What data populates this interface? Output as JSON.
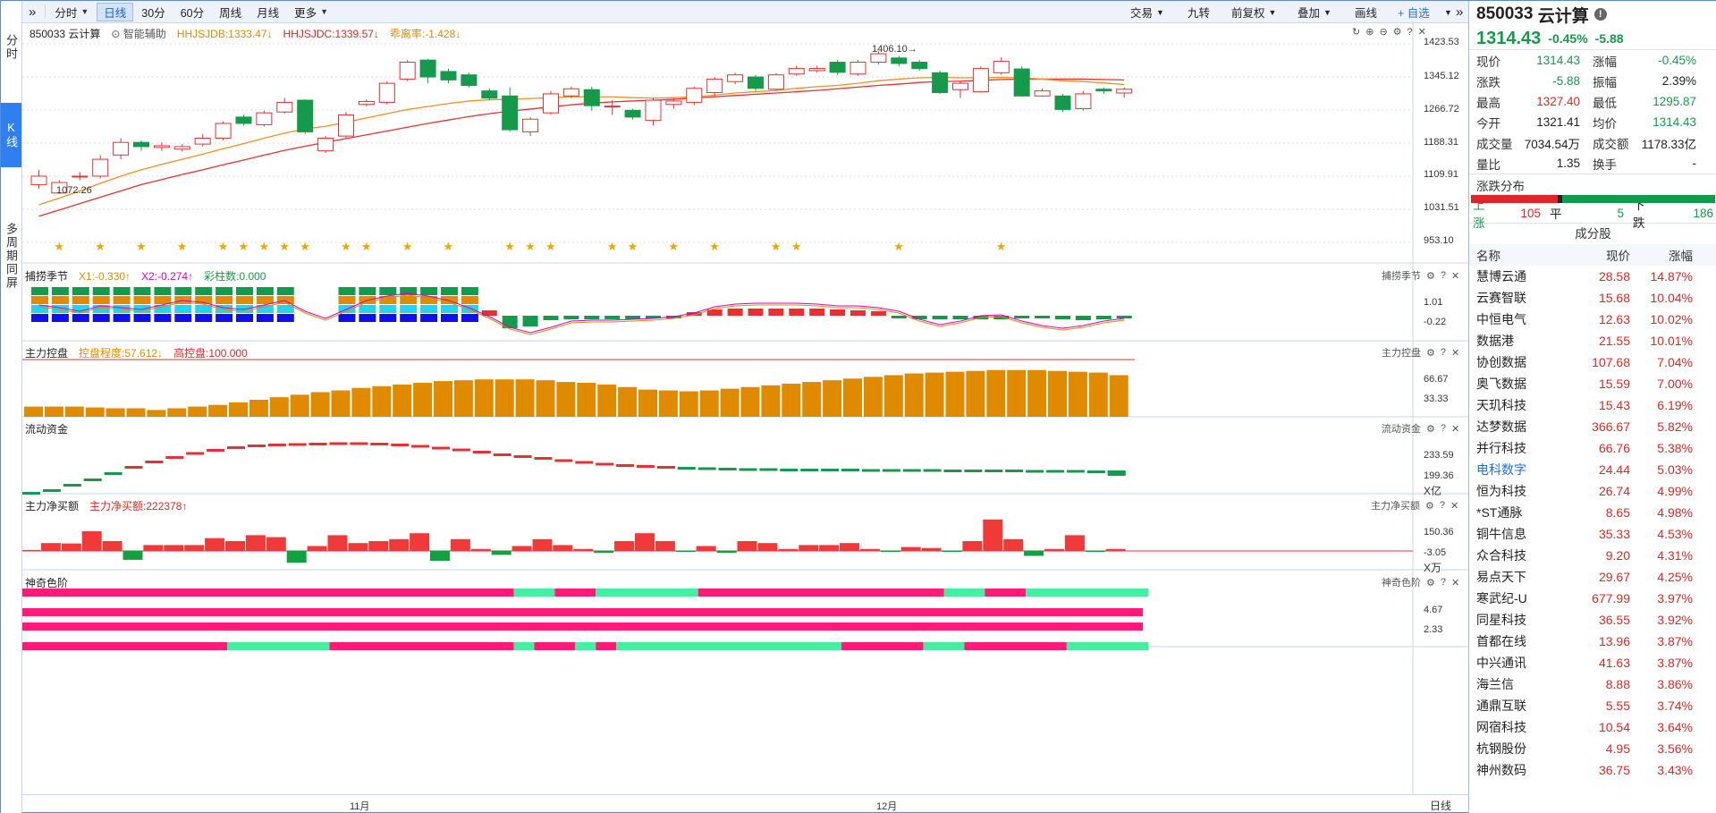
{
  "toolbar": {
    "collapse_icon": "double-chevron-icon",
    "periods": [
      "分时",
      "日线",
      "30分",
      "60分",
      "周线",
      "月线",
      "更多"
    ],
    "active_period": "日线",
    "right_items": [
      "交易",
      "九转",
      "前复权",
      "叠加",
      "画线",
      "+ 自选"
    ],
    "expand_icon": "double-chevron-right-icon"
  },
  "left_tabs": [
    "分时",
    "K线",
    "多周期同屏"
  ],
  "main": {
    "code_name": "850033 云计算",
    "smart_assist": "智能辅助",
    "ind_hhjsjdb": "HHJSJDB:1333.47↓",
    "ind_hhjsjdc": "HHJSJDC:1339.57↓",
    "ind_drawdown": "乖离率:-1.428↓",
    "high_label": "1406.10→",
    "low_label": "1072.26",
    "y_ticks": [
      "1423.53",
      "1345.12",
      "1266.72",
      "1188.31",
      "1109.91",
      "1031.51",
      "953.10"
    ]
  },
  "panels": [
    {
      "title": "捕捞季节",
      "items": [
        "X1:-0.330↑",
        "X2:-0.274↑",
        "彩柱数:0.000"
      ],
      "right": "捕捞季节",
      "y_ticks": [
        "1.01",
        "-0.22"
      ]
    },
    {
      "title": "主力控盘",
      "items": [
        "控盘程度:57.612↓",
        "高控盘:100.000"
      ],
      "right": "主力控盘",
      "y_ticks": [
        "66.67",
        "33.33"
      ]
    },
    {
      "title": "流动资金",
      "items": [],
      "right": "流动资金",
      "y_ticks": [
        "233.59",
        "199.36"
      ],
      "unit": "X亿"
    },
    {
      "title": "主力净买额",
      "items": [
        "主力净买额:222378↑"
      ],
      "right": "主力净买额",
      "y_ticks": [
        "150.36",
        "-3.05"
      ],
      "unit": "X万"
    },
    {
      "title": "神奇色阶",
      "items": [],
      "right": "神奇色阶",
      "y_ticks": [
        "4.67",
        "2.33"
      ]
    }
  ],
  "date_axis": {
    "labels": [
      "11月",
      "12月"
    ],
    "right_label": "日线"
  },
  "side": {
    "code": "850033",
    "name": "云计算",
    "price": "1314.43",
    "change_pct": "-0.45%",
    "change": "-5.88",
    "quote": [
      [
        "现价",
        "1314.43",
        "green",
        "涨幅",
        "-0.45%",
        "green"
      ],
      [
        "涨跌",
        "-5.88",
        "green",
        "振幅",
        "2.39%",
        "dk"
      ],
      [
        "最高",
        "1327.40",
        "red",
        "最低",
        "1295.87",
        "green"
      ],
      [
        "今开",
        "1321.41",
        "dk",
        "均价",
        "1314.43",
        "green"
      ],
      [
        "成交量",
        "7034.54万",
        "dk",
        "成交额",
        "1178.33亿",
        "dk"
      ],
      [
        "量比",
        "1.35",
        "dk",
        "换手",
        "-",
        "dk"
      ]
    ],
    "dist_title": "涨跌分布",
    "up_label": "上涨",
    "up": "105",
    "flat_label": "平",
    "flat": "5",
    "down_label": "下跌",
    "down": "186",
    "cf_title": "成分股",
    "cf_cols": [
      "名称",
      "现价",
      "涨幅"
    ],
    "stocks": [
      [
        "慧博云通",
        "28.58",
        "14.87%"
      ],
      [
        "云赛智联",
        "15.68",
        "10.04%"
      ],
      [
        "中恒电气",
        "12.63",
        "10.02%"
      ],
      [
        "数据港",
        "21.55",
        "10.01%"
      ],
      [
        "协创数据",
        "107.68",
        "7.04%"
      ],
      [
        "奥飞数据",
        "15.59",
        "7.00%"
      ],
      [
        "天玑科技",
        "15.43",
        "6.19%"
      ],
      [
        "达梦数据",
        "366.67",
        "5.82%"
      ],
      [
        "并行科技",
        "66.76",
        "5.38%"
      ],
      [
        "电科数字",
        "24.44",
        "5.03%"
      ],
      [
        "恒为科技",
        "26.74",
        "4.99%"
      ],
      [
        "*ST通脉",
        "8.65",
        "4.98%"
      ],
      [
        "铜牛信息",
        "35.33",
        "4.53%"
      ],
      [
        "众合科技",
        "9.20",
        "4.31%"
      ],
      [
        "易点天下",
        "29.67",
        "4.25%"
      ],
      [
        "寒武纪-U",
        "677.99",
        "3.97%"
      ],
      [
        "同星科技",
        "36.55",
        "3.92%"
      ],
      [
        "首都在线",
        "13.96",
        "3.87%"
      ],
      [
        "中兴通讯",
        "41.63",
        "3.87%"
      ],
      [
        "海兰信",
        "8.88",
        "3.86%"
      ],
      [
        "通鼎互联",
        "5.55",
        "3.74%"
      ],
      [
        "网宿科技",
        "10.54",
        "3.64%"
      ],
      [
        "杭钢股份",
        "4.95",
        "3.56%"
      ],
      [
        "神州数码",
        "36.75",
        "3.43%"
      ]
    ]
  },
  "chart_data": {
    "type": "candlestick",
    "ylim": [
      953.1,
      1423.53
    ],
    "candles": [
      [
        1090,
        1110,
        1125,
        1080
      ],
      [
        1070,
        1095,
        1100,
        1068
      ],
      [
        1108,
        1110,
        1120,
        1100
      ],
      [
        1110,
        1150,
        1160,
        1105
      ],
      [
        1160,
        1190,
        1200,
        1150
      ],
      [
        1190,
        1180,
        1195,
        1170
      ],
      [
        1178,
        1182,
        1190,
        1170
      ],
      [
        1174,
        1180,
        1186,
        1168
      ],
      [
        1186,
        1200,
        1210,
        1180
      ],
      [
        1200,
        1235,
        1240,
        1195
      ],
      [
        1250,
        1235,
        1255,
        1230
      ],
      [
        1232,
        1260,
        1265,
        1228
      ],
      [
        1262,
        1285,
        1295,
        1258
      ],
      [
        1290,
        1215,
        1292,
        1210
      ],
      [
        1170,
        1200,
        1205,
        1165
      ],
      [
        1205,
        1255,
        1262,
        1200
      ],
      [
        1280,
        1287,
        1292,
        1275
      ],
      [
        1285,
        1330,
        1335,
        1280
      ],
      [
        1340,
        1380,
        1385,
        1335
      ],
      [
        1385,
        1345,
        1388,
        1330
      ],
      [
        1358,
        1338,
        1365,
        1330
      ],
      [
        1350,
        1325,
        1355,
        1320
      ],
      [
        1312,
        1295,
        1318,
        1290
      ],
      [
        1300,
        1220,
        1320,
        1215
      ],
      [
        1215,
        1245,
        1250,
        1205
      ],
      [
        1260,
        1305,
        1312,
        1255
      ],
      [
        1300,
        1317,
        1322,
        1295
      ],
      [
        1315,
        1277,
        1322,
        1265
      ],
      [
        1276,
        1276,
        1290,
        1255
      ],
      [
        1266,
        1250,
        1270,
        1244
      ],
      [
        1242,
        1290,
        1296,
        1230
      ],
      [
        1280,
        1288,
        1295,
        1270
      ],
      [
        1285,
        1318,
        1322,
        1278
      ],
      [
        1308,
        1340,
        1345,
        1300
      ],
      [
        1334,
        1350,
        1355,
        1328
      ],
      [
        1345,
        1318,
        1350,
        1312
      ],
      [
        1316,
        1350,
        1354,
        1312
      ],
      [
        1352,
        1365,
        1372,
        1348
      ],
      [
        1360,
        1365,
        1372,
        1355
      ],
      [
        1380,
        1356,
        1385,
        1350
      ],
      [
        1352,
        1380,
        1385,
        1348
      ],
      [
        1380,
        1400,
        1406,
        1375
      ],
      [
        1390,
        1377,
        1395,
        1370
      ],
      [
        1380,
        1365,
        1385,
        1360
      ],
      [
        1355,
        1308,
        1360,
        1305
      ],
      [
        1315,
        1330,
        1335,
        1295
      ],
      [
        1310,
        1365,
        1370,
        1308
      ],
      [
        1355,
        1382,
        1392,
        1350
      ],
      [
        1364,
        1300,
        1370,
        1298
      ],
      [
        1300,
        1312,
        1318,
        1298
      ],
      [
        1300,
        1268,
        1305,
        1262
      ],
      [
        1270,
        1305,
        1312,
        1266
      ],
      [
        1316,
        1312,
        1320,
        1305
      ],
      [
        1307,
        1316,
        1320,
        1296
      ]
    ],
    "ma_fast": [
      1042,
      1058,
      1075,
      1093,
      1110,
      1125,
      1138,
      1150,
      1162,
      1175,
      1187,
      1200,
      1212,
      1222,
      1228,
      1238,
      1248,
      1258,
      1268,
      1275,
      1282,
      1288,
      1291,
      1292,
      1294,
      1296,
      1298,
      1298,
      1298,
      1296,
      1295,
      1296,
      1298,
      1302,
      1307,
      1310,
      1313,
      1318,
      1322,
      1325,
      1330,
      1336,
      1340,
      1343,
      1344,
      1343,
      1343,
      1344,
      1343,
      1340,
      1336,
      1334,
      1331,
      1327
    ],
    "ma_slow": [
      1015,
      1030,
      1045,
      1060,
      1075,
      1090,
      1102,
      1114,
      1125,
      1137,
      1148,
      1160,
      1171,
      1181,
      1190,
      1199,
      1208,
      1217,
      1226,
      1235,
      1243,
      1251,
      1258,
      1264,
      1269,
      1274,
      1279,
      1283,
      1286,
      1288,
      1290,
      1292,
      1295,
      1298,
      1301,
      1304,
      1307,
      1310,
      1313,
      1317,
      1321,
      1325,
      1328,
      1332,
      1334,
      1335,
      1337,
      1339,
      1340,
      1340,
      1340,
      1340,
      1339,
      1338
    ],
    "stars": [
      1,
      3,
      5,
      7,
      9,
      10,
      11,
      12,
      13,
      15,
      16,
      18,
      20,
      23,
      24,
      25,
      28,
      29,
      31,
      33,
      36,
      37,
      42,
      47
    ],
    "capital_rate": [
      2,
      3,
      3,
      4,
      4,
      4,
      3,
      3,
      3,
      4,
      4,
      5,
      6,
      6,
      7,
      8,
      8,
      9,
      10,
      11,
      12,
      13,
      14,
      15,
      17,
      18,
      18,
      18,
      17,
      16,
      15,
      13,
      12,
      12,
      13,
      14,
      15,
      16,
      17,
      18,
      19,
      19,
      19,
      19,
      19,
      20,
      21,
      22,
      24,
      25,
      26,
      27,
      26,
      24
    ],
    "kongpan": [
      12,
      12,
      12,
      11,
      10,
      10,
      8,
      10,
      12,
      14,
      17,
      20,
      23,
      26,
      29,
      31,
      34,
      36,
      38,
      40,
      42,
      43,
      44,
      44,
      44,
      43,
      41,
      40,
      38,
      35,
      32,
      31,
      30,
      31,
      33,
      35,
      37,
      39,
      41,
      43,
      45,
      47,
      49,
      51,
      52,
      53,
      54,
      55,
      55,
      55,
      54,
      53,
      52,
      49
    ],
    "netbuy": [
      5,
      40,
      38,
      100,
      50,
      -45,
      30,
      30,
      30,
      65,
      50,
      80,
      70,
      -60,
      25,
      80,
      40,
      50,
      60,
      90,
      -50,
      60,
      10,
      -20,
      25,
      60,
      30,
      10,
      -10,
      50,
      90,
      50,
      -5,
      25,
      -10,
      50,
      40,
      10,
      30,
      30,
      40,
      10,
      -5,
      20,
      15,
      -5,
      50,
      160,
      60,
      -25,
      10,
      80,
      -5,
      10
    ],
    "fund_levels": [
      -58,
      -52,
      -40,
      -28,
      -14,
      0,
      12,
      22,
      31,
      38,
      44,
      48,
      50,
      51,
      52,
      53,
      53,
      52,
      50,
      47,
      43,
      39,
      34,
      28,
      24,
      20,
      15,
      11,
      7,
      4,
      2,
      0,
      -2,
      -3,
      -4,
      -5,
      -5,
      -6,
      -6,
      -6,
      -6,
      -7,
      -7,
      -7,
      -7,
      -8,
      -8,
      -8,
      -8,
      -9,
      -9,
      -9,
      -10,
      -11
    ]
  }
}
